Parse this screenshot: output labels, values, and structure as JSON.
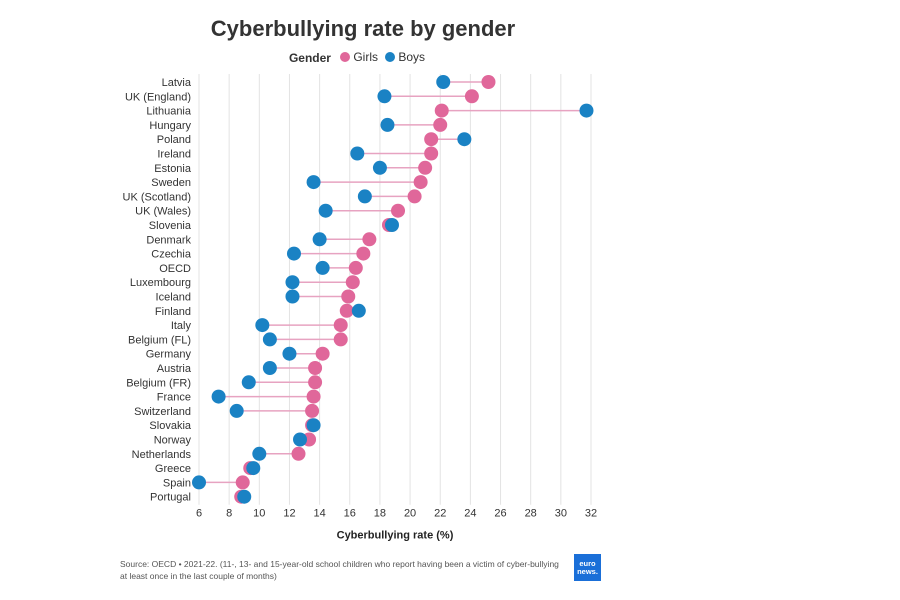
{
  "chart_data": {
    "type": "dumbbell",
    "title": "Cyberbullying rate by gender",
    "xlabel": "Cyberbullying rate (%)",
    "ylabel": "",
    "xlim": [
      6,
      32
    ],
    "xticks": [
      6,
      8,
      10,
      12,
      14,
      16,
      18,
      20,
      22,
      24,
      26,
      28,
      30,
      32
    ],
    "grid": true,
    "legend": {
      "title": "Gender",
      "position": "top-center"
    },
    "categories": [
      "Latvia",
      "UK (England)",
      "Lithuania",
      "Hungary",
      "Poland",
      "Ireland",
      "Estonia",
      "Sweden",
      "UK (Scotland)",
      "UK (Wales)",
      "Slovenia",
      "Denmark",
      "Czechia",
      "OECD",
      "Luxembourg",
      "Iceland",
      "Finland",
      "Italy",
      "Belgium (FL)",
      "Germany",
      "Austria",
      "Belgium (FR)",
      "France",
      "Switzerland",
      "Slovakia",
      "Norway",
      "Netherlands",
      "Greece",
      "Spain",
      "Portugal"
    ],
    "series": [
      {
        "name": "Girls",
        "color": "#e0679a",
        "values": [
          25.2,
          24.1,
          22.1,
          22.0,
          21.4,
          21.4,
          21.0,
          20.7,
          20.3,
          19.2,
          18.6,
          17.3,
          16.9,
          16.4,
          16.2,
          15.9,
          15.8,
          15.4,
          15.4,
          14.2,
          13.7,
          13.7,
          13.6,
          13.5,
          13.5,
          13.3,
          12.6,
          9.4,
          8.9,
          8.8
        ]
      },
      {
        "name": "Boys",
        "color": "#1a82c4",
        "values": [
          22.2,
          18.3,
          31.7,
          18.5,
          23.6,
          16.5,
          18.0,
          13.6,
          17.0,
          14.4,
          18.8,
          14.0,
          12.3,
          14.2,
          12.2,
          12.2,
          16.6,
          10.2,
          10.7,
          12.0,
          10.7,
          9.3,
          7.3,
          8.5,
          13.6,
          12.7,
          10.0,
          9.6,
          6.0,
          9.0
        ]
      }
    ]
  },
  "source_note": "Source: OECD • 2021-22. (11-, 13- and 15-year-old school children who report having been a victim of cyber-bullying at least once in the last couple of months)",
  "logo_text": "euro news."
}
